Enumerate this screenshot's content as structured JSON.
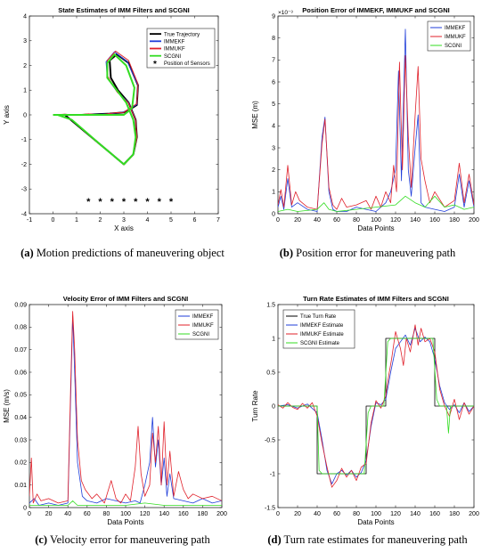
{
  "captions": [
    {
      "label": "(a)",
      "text": "Motion predictions of maneuvering object"
    },
    {
      "label": "(b)",
      "text": "Position error for maneuvering path"
    },
    {
      "label": "(c)",
      "text": "Velocity error for maneuvering path"
    },
    {
      "label": "(d)",
      "text": "Turn rate estimates for maneuvering path"
    }
  ],
  "colors": {
    "true": "#000000",
    "immekf": "#1f3dd9",
    "immukf": "#e0202a",
    "scgni": "#33dd22"
  },
  "chart_data": [
    {
      "type": "line",
      "title": "State Estimates of IMM Filters and SCGNI",
      "xlabel": "X axis",
      "ylabel": "Y axis",
      "xlim": [
        -1,
        7
      ],
      "ylim": [
        -4,
        4
      ],
      "xticks": [
        -1,
        0,
        1,
        2,
        3,
        4,
        5,
        6,
        7
      ],
      "yticks": [
        -4,
        -3,
        -2,
        -1,
        0,
        1,
        2,
        3,
        4
      ],
      "legend_position": "top-right",
      "series": [
        {
          "name": "True Trajectory",
          "color": "#000000",
          "width": 2,
          "x": [
            0,
            1.2,
            2.4,
            3.0,
            3.3,
            3.55,
            3.6,
            3.2,
            2.7,
            2.4,
            2.45,
            2.75,
            3.2,
            3.5,
            3.55,
            3.4,
            3.0,
            2.5,
            1.5,
            0.5,
            0
          ],
          "y": [
            0,
            0,
            0.05,
            0.1,
            0.25,
            0.4,
            1.2,
            2.1,
            2.45,
            2.2,
            1.5,
            1.0,
            0.5,
            -0.2,
            -0.9,
            -1.6,
            -2.0,
            -1.6,
            -0.8,
            0,
            0
          ]
        },
        {
          "name": "IMMEKF",
          "color": "#1f3dd9",
          "width": 1,
          "x": [
            0,
            0.5,
            1.0,
            1.5,
            2.0,
            2.6,
            3.0,
            3.3,
            3.55,
            3.6,
            3.15,
            2.6,
            2.25,
            2.3,
            2.7,
            3.2,
            3.5,
            3.55,
            3.4,
            3.0,
            2.5,
            2.0,
            1.4,
            0.8,
            0.2
          ],
          "y": [
            0,
            0.02,
            0,
            0.03,
            0.02,
            0.06,
            0.12,
            0.27,
            0.42,
            1.2,
            2.15,
            2.55,
            2.15,
            1.5,
            0.95,
            0.5,
            -0.2,
            -0.9,
            -1.6,
            -2.0,
            -1.6,
            -1.2,
            -0.7,
            -0.2,
            0
          ]
        },
        {
          "name": "IMMUKF",
          "color": "#e0202a",
          "width": 1,
          "x": [
            0,
            0.5,
            1.0,
            1.5,
            2.0,
            2.6,
            3.0,
            3.3,
            3.55,
            3.6,
            3.2,
            2.65,
            2.3,
            2.32,
            2.72,
            3.2,
            3.5,
            3.55,
            3.4,
            3.0,
            2.5,
            2.0,
            1.4,
            0.8,
            0.2
          ],
          "y": [
            0,
            0.03,
            -0.01,
            0.04,
            0.0,
            0.08,
            0.1,
            0.3,
            0.45,
            1.25,
            2.2,
            2.58,
            2.2,
            1.55,
            0.92,
            0.48,
            -0.22,
            -0.92,
            -1.62,
            -2.02,
            -1.6,
            -1.22,
            -0.72,
            -0.2,
            0
          ]
        },
        {
          "name": "SCGNI",
          "color": "#33dd22",
          "width": 2,
          "x": [
            0,
            0.5,
            1.0,
            1.5,
            2.0,
            2.5,
            3.0,
            3.2,
            3.35,
            3.45,
            3.1,
            2.6,
            2.3,
            2.3,
            2.7,
            3.1,
            3.4,
            3.5,
            3.4,
            3.0,
            2.5,
            2.0,
            1.4,
            0.8,
            0.2
          ],
          "y": [
            0,
            0,
            0,
            0,
            0,
            0,
            0,
            0.15,
            0.3,
            1.1,
            2.0,
            2.45,
            2.1,
            1.5,
            1.0,
            0.5,
            -0.2,
            -0.9,
            -1.6,
            -2.0,
            -1.6,
            -1.2,
            -0.7,
            -0.2,
            0
          ]
        },
        {
          "name": "Position of Sensors",
          "color": "#000000",
          "marker": "*",
          "x": [
            1.5,
            2.0,
            2.5,
            3.0,
            3.5,
            4.0,
            4.5,
            5.0
          ],
          "y": [
            -3.5,
            -3.5,
            -3.5,
            -3.5,
            -3.5,
            -3.5,
            -3.5,
            -3.5
          ]
        }
      ]
    },
    {
      "type": "line",
      "title": "Position Error of IMMEKF, IMMUKF and SCGNI",
      "xlabel": "Data Points",
      "ylabel": "MSE (m)",
      "yexponent": "×10⁻³",
      "xlim": [
        0,
        200
      ],
      "ylim": [
        0,
        9
      ],
      "xticks": [
        0,
        20,
        40,
        60,
        80,
        100,
        120,
        140,
        160,
        180,
        200
      ],
      "yticks": [
        0,
        1,
        2,
        3,
        4,
        5,
        6,
        7,
        8,
        9
      ],
      "legend_position": "top-right",
      "series": [
        {
          "name": "IMMEKF",
          "color": "#1f3dd9",
          "x": [
            0,
            3,
            6,
            10,
            14,
            20,
            30,
            40,
            45,
            48,
            52,
            56,
            60,
            70,
            80,
            90,
            100,
            110,
            115,
            120,
            123,
            126,
            130,
            133,
            136,
            140,
            143,
            146,
            150,
            160,
            170,
            180,
            185,
            190,
            195,
            200
          ],
          "y": [
            0.3,
            0.8,
            0.2,
            1.6,
            0.3,
            0.5,
            0.2,
            0.1,
            3.5,
            4.4,
            1.0,
            0.2,
            0.1,
            0.1,
            0.3,
            0.2,
            0.1,
            0.5,
            1.0,
            2.0,
            6.5,
            1.5,
            8.4,
            2.0,
            0.8,
            3.0,
            4.5,
            0.5,
            0.3,
            0.2,
            0.1,
            0.3,
            1.8,
            0.3,
            1.5,
            0.3
          ]
        },
        {
          "name": "IMMUKF",
          "color": "#e0202a",
          "x": [
            0,
            3,
            6,
            10,
            14,
            18,
            22,
            30,
            40,
            45,
            48,
            52,
            56,
            60,
            65,
            70,
            80,
            90,
            95,
            100,
            105,
            110,
            115,
            118,
            121,
            124,
            127,
            130,
            133,
            136,
            140,
            143,
            146,
            150,
            155,
            160,
            170,
            180,
            185,
            190,
            195,
            200
          ],
          "y": [
            0.4,
            1.1,
            0.3,
            2.2,
            0.4,
            1.0,
            0.6,
            0.3,
            0.2,
            3.2,
            4.3,
            1.2,
            0.4,
            0.2,
            0.7,
            0.3,
            0.4,
            0.6,
            0.2,
            0.8,
            0.3,
            1.0,
            0.5,
            2.2,
            1.0,
            6.9,
            2.0,
            7.2,
            3.5,
            1.2,
            4.5,
            6.7,
            2.5,
            1.5,
            0.5,
            1.0,
            0.3,
            0.6,
            2.3,
            0.5,
            1.8,
            0.4
          ]
        },
        {
          "name": "SCGNI",
          "color": "#33dd22",
          "x": [
            0,
            10,
            20,
            40,
            47,
            52,
            60,
            80,
            100,
            120,
            130,
            140,
            150,
            160,
            170,
            180,
            190,
            200
          ],
          "y": [
            0.1,
            0.2,
            0.1,
            0.2,
            0.5,
            0.2,
            0.1,
            0.2,
            0.3,
            0.4,
            0.8,
            0.5,
            0.3,
            0.8,
            0.3,
            0.4,
            0.2,
            0.3
          ]
        }
      ]
    },
    {
      "type": "line",
      "title": "Velocity Error of IMM Filters and SCGNI",
      "xlabel": "Data Points",
      "ylabel": "MSE (m/s)",
      "xlim": [
        0,
        200
      ],
      "ylim": [
        0,
        0.09
      ],
      "xticks": [
        0,
        20,
        40,
        60,
        80,
        100,
        120,
        140,
        160,
        180,
        200
      ],
      "yticks": [
        0,
        0.01,
        0.02,
        0.03,
        0.04,
        0.05,
        0.06,
        0.07,
        0.08,
        0.09
      ],
      "legend_position": "top-right",
      "series": [
        {
          "name": "IMMEKF",
          "color": "#1f3dd9",
          "x": [
            0,
            5,
            10,
            20,
            30,
            40,
            43,
            45,
            47,
            50,
            55,
            60,
            70,
            80,
            90,
            100,
            110,
            115,
            120,
            125,
            128,
            131,
            134,
            137,
            140,
            143,
            146,
            150,
            160,
            170,
            180,
            190,
            200
          ],
          "y": [
            0.002,
            0.004,
            0.001,
            0.002,
            0.001,
            0.002,
            0.05,
            0.085,
            0.06,
            0.02,
            0.005,
            0.003,
            0.002,
            0.004,
            0.003,
            0.002,
            0.003,
            0.002,
            0.01,
            0.02,
            0.04,
            0.018,
            0.03,
            0.01,
            0.022,
            0.005,
            0.015,
            0.004,
            0.003,
            0.002,
            0.004,
            0.002,
            0.003
          ]
        },
        {
          "name": "IMMUKF",
          "color": "#e0202a",
          "x": [
            0,
            2,
            4,
            8,
            12,
            20,
            30,
            40,
            43,
            45,
            47,
            50,
            54,
            58,
            65,
            70,
            78,
            85,
            90,
            95,
            100,
            105,
            110,
            113,
            116,
            120,
            125,
            128,
            131,
            134,
            137,
            140,
            143,
            146,
            150,
            155,
            160,
            165,
            170,
            180,
            190,
            200
          ],
          "y": [
            0.005,
            0.022,
            0.002,
            0.006,
            0.003,
            0.004,
            0.002,
            0.003,
            0.055,
            0.087,
            0.07,
            0.03,
            0.012,
            0.008,
            0.004,
            0.006,
            0.002,
            0.012,
            0.004,
            0.002,
            0.006,
            0.003,
            0.018,
            0.036,
            0.015,
            0.005,
            0.01,
            0.033,
            0.02,
            0.036,
            0.01,
            0.038,
            0.01,
            0.025,
            0.005,
            0.016,
            0.008,
            0.004,
            0.006,
            0.004,
            0.005,
            0.003
          ]
        },
        {
          "name": "SCGNI",
          "color": "#33dd22",
          "x": [
            0,
            20,
            40,
            45,
            50,
            60,
            80,
            100,
            120,
            140,
            160,
            180,
            200
          ],
          "y": [
            0.001,
            0.001,
            0.001,
            0.003,
            0.001,
            0.001,
            0.001,
            0.001,
            0.002,
            0.001,
            0.001,
            0.001,
            0.001
          ]
        }
      ]
    },
    {
      "type": "line",
      "title": "Turn Rate Estimates of IMM Filters and SCGNI",
      "xlabel": "Data Points",
      "ylabel": "Turn Rate",
      "xlim": [
        0,
        200
      ],
      "ylim": [
        -1.5,
        1.5
      ],
      "xticks": [
        0,
        20,
        40,
        60,
        80,
        100,
        120,
        140,
        160,
        180,
        200
      ],
      "yticks": [
        -1.5,
        -1,
        -0.5,
        0,
        0.5,
        1,
        1.5
      ],
      "legend_position": "top-left",
      "series": [
        {
          "name": "True Turn Rate",
          "color": "#000000",
          "x": [
            0,
            40,
            40,
            90,
            90,
            110,
            110,
            160,
            160,
            200
          ],
          "y": [
            0,
            0,
            -1,
            -1,
            0,
            0,
            1,
            1,
            0,
            0
          ]
        },
        {
          "name": "IMMEKF Estimate",
          "color": "#1f3dd9",
          "x": [
            0,
            10,
            20,
            30,
            40,
            45,
            50,
            55,
            60,
            65,
            70,
            75,
            80,
            85,
            90,
            95,
            100,
            105,
            110,
            115,
            120,
            125,
            130,
            135,
            140,
            145,
            150,
            155,
            160,
            165,
            170,
            175,
            180,
            185,
            190,
            195,
            200
          ],
          "y": [
            0,
            0.02,
            -0.03,
            0.03,
            -0.1,
            -0.5,
            -0.95,
            -1.15,
            -1.0,
            -0.95,
            -1.02,
            -0.95,
            -1.05,
            -0.98,
            -0.8,
            -0.3,
            0.05,
            0.02,
            0.1,
            0.5,
            0.85,
            0.95,
            1.05,
            0.9,
            1.15,
            0.95,
            1.02,
            0.95,
            0.7,
            0.3,
            0.05,
            -0.05,
            0.02,
            -0.1,
            0.05,
            -0.08,
            0
          ]
        },
        {
          "name": "IMMUKF Estimate",
          "color": "#e0202a",
          "x": [
            0,
            5,
            10,
            15,
            20,
            25,
            30,
            35,
            40,
            45,
            50,
            55,
            60,
            65,
            70,
            75,
            80,
            85,
            90,
            95,
            100,
            105,
            110,
            113,
            116,
            120,
            125,
            128,
            131,
            135,
            140,
            143,
            146,
            150,
            155,
            160,
            165,
            170,
            175,
            180,
            185,
            190,
            195,
            200
          ],
          "y": [
            0.02,
            -0.03,
            0.05,
            -0.02,
            -0.05,
            0.04,
            -0.03,
            0.05,
            -0.15,
            -0.55,
            -0.9,
            -1.2,
            -1.1,
            -0.92,
            -1.05,
            -0.95,
            -1.1,
            -0.9,
            -0.85,
            -0.25,
            0.08,
            -0.03,
            0.15,
            0.45,
            0.7,
            1.1,
            0.85,
            0.6,
            1.0,
            0.8,
            1.2,
            0.9,
            1.15,
            0.95,
            1.0,
            0.8,
            0.25,
            0.0,
            -0.15,
            0.1,
            -0.2,
            0.05,
            -0.12,
            0.0
          ]
        },
        {
          "name": "SCGNI Estimate",
          "color": "#33dd22",
          "x": [
            0,
            40,
            42,
            45,
            88,
            92,
            95,
            108,
            112,
            115,
            158,
            162,
            165,
            172,
            174,
            176,
            200
          ],
          "y": [
            0,
            0,
            -0.95,
            -1.0,
            -1.0,
            -0.1,
            0,
            0,
            0.95,
            1.0,
            1.0,
            0.1,
            0,
            0,
            -0.4,
            0,
            0
          ]
        }
      ]
    }
  ]
}
